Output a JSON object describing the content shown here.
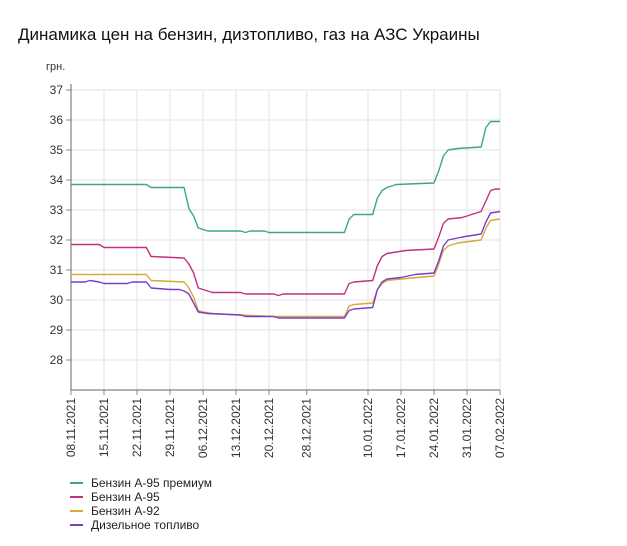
{
  "chart_data": {
    "type": "line",
    "title": "Динамика цен на бензин, дизтопливо, газ на АЗС Украины",
    "ylabel": "грн.",
    "ylim": [
      27,
      37
    ],
    "yticks": [
      "28",
      "29",
      "30",
      "31",
      "32",
      "33",
      "34",
      "35",
      "36",
      "37"
    ],
    "xlim": [
      "2021-11-08",
      "2022-02-07"
    ],
    "xticks": [
      "08.11.2021",
      "15.11.2021",
      "22.11.2021",
      "29.11.2021",
      "06.12.2021",
      "13.12.2021",
      "20.12.2021",
      "28.12.2021",
      "10.01.2022",
      "17.01.2022",
      "24.01.2022",
      "31.01.2022",
      "07.02.2022"
    ],
    "legend": "bottom-left",
    "grid": true,
    "series": [
      {
        "name": "Бензин А-95 премиум",
        "color": "#3aa78c",
        "points": [
          [
            "2021-11-08",
            33.85
          ],
          [
            "2021-11-24",
            33.85
          ],
          [
            "2021-11-25",
            33.75
          ],
          [
            "2021-12-02",
            33.75
          ],
          [
            "2021-12-03",
            33.05
          ],
          [
            "2021-12-04",
            32.8
          ],
          [
            "2021-12-05",
            32.4
          ],
          [
            "2021-12-06",
            32.35
          ],
          [
            "2021-12-07",
            32.3
          ],
          [
            "2021-12-14",
            32.3
          ],
          [
            "2021-12-15",
            32.25
          ],
          [
            "2021-12-16",
            32.3
          ],
          [
            "2021-12-19",
            32.3
          ],
          [
            "2021-12-20",
            32.25
          ],
          [
            "2022-01-05",
            32.25
          ],
          [
            "2022-01-06",
            32.7
          ],
          [
            "2022-01-07",
            32.85
          ],
          [
            "2022-01-11",
            32.85
          ],
          [
            "2022-01-12",
            33.4
          ],
          [
            "2022-01-13",
            33.65
          ],
          [
            "2022-01-14",
            33.75
          ],
          [
            "2022-01-16",
            33.85
          ],
          [
            "2022-01-24",
            33.9
          ],
          [
            "2022-01-25",
            34.3
          ],
          [
            "2022-01-26",
            34.8
          ],
          [
            "2022-01-27",
            35.0
          ],
          [
            "2022-01-29",
            35.05
          ],
          [
            "2022-02-03",
            35.1
          ],
          [
            "2022-02-04",
            35.75
          ],
          [
            "2022-02-05",
            35.95
          ],
          [
            "2022-02-07",
            35.95
          ]
        ]
      },
      {
        "name": "Бензин А-95",
        "color": "#c2317d",
        "points": [
          [
            "2021-11-08",
            31.85
          ],
          [
            "2021-11-14",
            31.85
          ],
          [
            "2021-11-15",
            31.75
          ],
          [
            "2021-11-24",
            31.75
          ],
          [
            "2021-11-25",
            31.45
          ],
          [
            "2021-12-02",
            31.4
          ],
          [
            "2021-12-03",
            31.2
          ],
          [
            "2021-12-04",
            30.9
          ],
          [
            "2021-12-05",
            30.4
          ],
          [
            "2021-12-06",
            30.35
          ],
          [
            "2021-12-08",
            30.25
          ],
          [
            "2021-12-14",
            30.25
          ],
          [
            "2021-12-15",
            30.2
          ],
          [
            "2021-12-21",
            30.2
          ],
          [
            "2021-12-22",
            30.15
          ],
          [
            "2021-12-23",
            30.2
          ],
          [
            "2022-01-05",
            30.2
          ],
          [
            "2022-01-06",
            30.55
          ],
          [
            "2022-01-07",
            30.6
          ],
          [
            "2022-01-11",
            30.65
          ],
          [
            "2022-01-12",
            31.15
          ],
          [
            "2022-01-13",
            31.45
          ],
          [
            "2022-01-14",
            31.55
          ],
          [
            "2022-01-18",
            31.65
          ],
          [
            "2022-01-24",
            31.7
          ],
          [
            "2022-01-25",
            32.1
          ],
          [
            "2022-01-26",
            32.55
          ],
          [
            "2022-01-27",
            32.7
          ],
          [
            "2022-01-30",
            32.75
          ],
          [
            "2022-02-03",
            32.95
          ],
          [
            "2022-02-04",
            33.3
          ],
          [
            "2022-02-05",
            33.65
          ],
          [
            "2022-02-06",
            33.7
          ],
          [
            "2022-02-07",
            33.7
          ]
        ]
      },
      {
        "name": "Бензин А-92",
        "color": "#d9a838",
        "points": [
          [
            "2021-11-08",
            30.85
          ],
          [
            "2021-11-24",
            30.85
          ],
          [
            "2021-11-25",
            30.65
          ],
          [
            "2021-12-02",
            30.6
          ],
          [
            "2021-12-03",
            30.4
          ],
          [
            "2021-12-04",
            30.1
          ],
          [
            "2021-12-05",
            29.65
          ],
          [
            "2021-12-06",
            29.6
          ],
          [
            "2021-12-08",
            29.55
          ],
          [
            "2021-12-14",
            29.5
          ],
          [
            "2021-12-21",
            29.45
          ],
          [
            "2022-01-05",
            29.45
          ],
          [
            "2022-01-06",
            29.8
          ],
          [
            "2022-01-07",
            29.85
          ],
          [
            "2022-01-11",
            29.9
          ],
          [
            "2022-01-12",
            30.35
          ],
          [
            "2022-01-13",
            30.55
          ],
          [
            "2022-01-14",
            30.65
          ],
          [
            "2022-01-17",
            30.7
          ],
          [
            "2022-01-24",
            30.8
          ],
          [
            "2022-01-25",
            31.2
          ],
          [
            "2022-01-26",
            31.65
          ],
          [
            "2022-01-27",
            31.8
          ],
          [
            "2022-01-29",
            31.9
          ],
          [
            "2022-02-03",
            32.0
          ],
          [
            "2022-02-04",
            32.4
          ],
          [
            "2022-02-05",
            32.65
          ],
          [
            "2022-02-07",
            32.7
          ]
        ]
      },
      {
        "name": "Дизельное топливо",
        "color": "#7a3fc4",
        "points": [
          [
            "2021-11-08",
            30.6
          ],
          [
            "2021-11-11",
            30.6
          ],
          [
            "2021-11-12",
            30.65
          ],
          [
            "2021-11-14",
            30.6
          ],
          [
            "2021-11-15",
            30.55
          ],
          [
            "2021-11-20",
            30.55
          ],
          [
            "2021-11-21",
            30.6
          ],
          [
            "2021-11-24",
            30.6
          ],
          [
            "2021-11-25",
            30.4
          ],
          [
            "2021-11-29",
            30.35
          ],
          [
            "2021-12-01",
            30.35
          ],
          [
            "2021-12-02",
            30.3
          ],
          [
            "2021-12-03",
            30.2
          ],
          [
            "2021-12-04",
            29.9
          ],
          [
            "2021-12-05",
            29.6
          ],
          [
            "2021-12-07",
            29.55
          ],
          [
            "2021-12-14",
            29.5
          ],
          [
            "2021-12-15",
            29.45
          ],
          [
            "2021-12-21",
            29.45
          ],
          [
            "2021-12-22",
            29.4
          ],
          [
            "2022-01-05",
            29.4
          ],
          [
            "2022-01-06",
            29.65
          ],
          [
            "2022-01-07",
            29.7
          ],
          [
            "2022-01-11",
            29.75
          ],
          [
            "2022-01-12",
            30.35
          ],
          [
            "2022-01-13",
            30.6
          ],
          [
            "2022-01-14",
            30.7
          ],
          [
            "2022-01-17",
            30.75
          ],
          [
            "2022-01-20",
            30.85
          ],
          [
            "2022-01-24",
            30.9
          ],
          [
            "2022-01-25",
            31.3
          ],
          [
            "2022-01-26",
            31.8
          ],
          [
            "2022-01-27",
            32.0
          ],
          [
            "2022-01-30",
            32.1
          ],
          [
            "2022-02-03",
            32.2
          ],
          [
            "2022-02-04",
            32.6
          ],
          [
            "2022-02-05",
            32.9
          ],
          [
            "2022-02-07",
            32.95
          ]
        ]
      }
    ]
  }
}
